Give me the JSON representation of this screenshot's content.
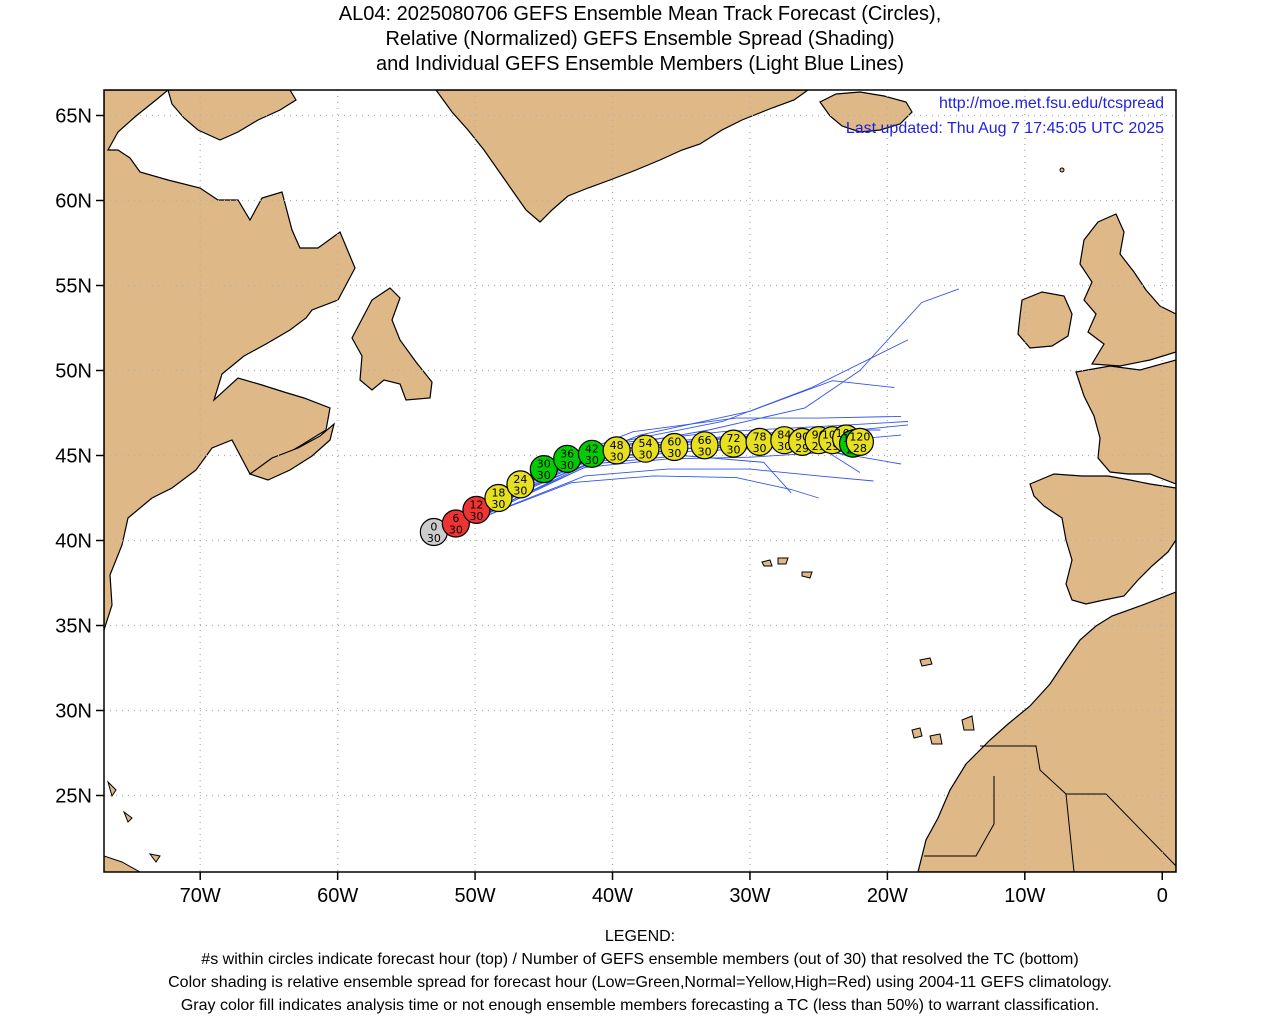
{
  "title": {
    "line1": "AL04: 2025080706 GEFS Ensemble Mean Track Forecast (Circles),",
    "line2": "Relative (Normalized) GEFS Ensemble Spread (Shading)",
    "line3": "and Individual GEFS Ensemble Members (Light Blue Lines)"
  },
  "header_info": {
    "url": "http://moe.met.fsu.edu/tcspread",
    "updated": "Last updated: Thu Aug 7 17:45:05 UTC 2025"
  },
  "map": {
    "lon_range": [
      -77,
      1
    ],
    "lat_range": [
      20.5,
      66.5
    ],
    "gridlines": "dotted",
    "lat_labels": [
      "65N",
      "60N",
      "55N",
      "50N",
      "45N",
      "40N",
      "35N",
      "30N",
      "25N"
    ],
    "lat_values": [
      65,
      60,
      55,
      50,
      45,
      40,
      35,
      30,
      25
    ],
    "lon_labels": [
      "70W",
      "60W",
      "50W",
      "40W",
      "30W",
      "20W",
      "10W",
      "0"
    ],
    "lon_values": [
      -70,
      -60,
      -50,
      -40,
      -30,
      -20,
      -10,
      0
    ]
  },
  "colors": {
    "land": "#deb887",
    "ocean": "#ffffff",
    "member_lines": "#3355ee",
    "spread_low": "#00cc00",
    "spread_normal": "#e6e020",
    "spread_high": "#ee3333",
    "insufficient": "#cccccc",
    "url_text": "#2222dd"
  },
  "track": [
    {
      "hour": "0",
      "members": "30",
      "lon": -53.0,
      "lat": 40.5,
      "spread": "gray"
    },
    {
      "hour": "6",
      "members": "30",
      "lon": -51.4,
      "lat": 41.0,
      "spread": "high"
    },
    {
      "hour": "12",
      "members": "30",
      "lon": -49.9,
      "lat": 41.8,
      "spread": "high"
    },
    {
      "hour": "18",
      "members": "30",
      "lon": -48.3,
      "lat": 42.5,
      "spread": "normal"
    },
    {
      "hour": "24",
      "members": "30",
      "lon": -46.7,
      "lat": 43.3,
      "spread": "normal"
    },
    {
      "hour": "30",
      "members": "30",
      "lon": -45.0,
      "lat": 44.2,
      "spread": "low"
    },
    {
      "hour": "36",
      "members": "30",
      "lon": -43.3,
      "lat": 44.8,
      "spread": "low"
    },
    {
      "hour": "42",
      "members": "30",
      "lon": -41.5,
      "lat": 45.1,
      "spread": "low"
    },
    {
      "hour": "48",
      "members": "30",
      "lon": -39.7,
      "lat": 45.3,
      "spread": "normal"
    },
    {
      "hour": "54",
      "members": "30",
      "lon": -37.6,
      "lat": 45.4,
      "spread": "normal"
    },
    {
      "hour": "60",
      "members": "30",
      "lon": -35.5,
      "lat": 45.5,
      "spread": "normal"
    },
    {
      "hour": "66",
      "members": "30",
      "lon": -33.3,
      "lat": 45.6,
      "spread": "normal"
    },
    {
      "hour": "72",
      "members": "30",
      "lon": -31.2,
      "lat": 45.7,
      "spread": "normal"
    },
    {
      "hour": "78",
      "members": "30",
      "lon": -29.3,
      "lat": 45.8,
      "spread": "normal"
    },
    {
      "hour": "84",
      "members": "30",
      "lon": -27.5,
      "lat": 45.9,
      "spread": "normal"
    },
    {
      "hour": "90",
      "members": "29",
      "lon": -26.2,
      "lat": 45.8,
      "spread": "normal"
    },
    {
      "hour": "96",
      "members": "29",
      "lon": -25.0,
      "lat": 45.9,
      "spread": "normal"
    },
    {
      "hour": "102",
      "members": "29",
      "lon": -24.0,
      "lat": 45.9,
      "spread": "normal"
    },
    {
      "hour": "108",
      "members": "29",
      "lon": -23.0,
      "lat": 46.0,
      "spread": "normal"
    },
    {
      "hour": "114",
      "members": "28",
      "lon": -22.5,
      "lat": 45.7,
      "spread": "low"
    },
    {
      "hour": "120",
      "members": "28",
      "lon": -22.0,
      "lat": 45.8,
      "spread": "normal"
    }
  ],
  "members": [
    [
      [
        -50.5,
        41.0
      ],
      [
        -46.0,
        43.5
      ],
      [
        -40.0,
        45.5
      ],
      [
        -33.0,
        46.5
      ],
      [
        -26.0,
        47.8
      ],
      [
        -22.0,
        50.0
      ],
      [
        -17.5,
        54.0
      ],
      [
        -14.8,
        54.8
      ]
    ],
    [
      [
        -50.5,
        41.0
      ],
      [
        -45.5,
        43.8
      ],
      [
        -39.5,
        45.8
      ],
      [
        -32.0,
        47.0
      ],
      [
        -25.5,
        49.0
      ],
      [
        -18.5,
        51.8
      ]
    ],
    [
      [
        -50.5,
        41.0
      ],
      [
        -45.0,
        44.0
      ],
      [
        -38.0,
        46.2
      ],
      [
        -30.0,
        47.6
      ],
      [
        -24.0,
        49.4
      ],
      [
        -19.5,
        49.0
      ]
    ],
    [
      [
        -50.5,
        41.0
      ],
      [
        -45.5,
        44.2
      ],
      [
        -38.5,
        46.4
      ],
      [
        -31.0,
        47.2
      ],
      [
        -25.0,
        47.2
      ],
      [
        -19.0,
        47.3
      ]
    ],
    [
      [
        -50.5,
        41.0
      ],
      [
        -46.0,
        43.6
      ],
      [
        -40.0,
        45.7
      ],
      [
        -32.0,
        46.4
      ],
      [
        -25.0,
        46.7
      ],
      [
        -18.5,
        47.0
      ]
    ],
    [
      [
        -50.5,
        41.0
      ],
      [
        -46.0,
        43.2
      ],
      [
        -40.5,
        45.1
      ],
      [
        -34.0,
        45.7
      ],
      [
        -27.0,
        46.1
      ],
      [
        -18.5,
        46.8
      ]
    ],
    [
      [
        -50.5,
        41.0
      ],
      [
        -46.5,
        42.9
      ],
      [
        -41.0,
        44.8
      ],
      [
        -34.5,
        45.4
      ],
      [
        -27.5,
        45.6
      ],
      [
        -19.0,
        46.2
      ]
    ],
    [
      [
        -50.5,
        41.0
      ],
      [
        -47.0,
        42.5
      ],
      [
        -42.0,
        44.3
      ],
      [
        -36.0,
        44.8
      ],
      [
        -30.0,
        44.9
      ],
      [
        -24.0,
        45.2
      ],
      [
        -19.0,
        44.5
      ]
    ],
    [
      [
        -50.5,
        41.0
      ],
      [
        -47.0,
        42.2
      ],
      [
        -42.0,
        43.8
      ],
      [
        -36.0,
        44.2
      ],
      [
        -30.0,
        44.2
      ],
      [
        -25.0,
        43.8
      ],
      [
        -21.0,
        43.5
      ]
    ],
    [
      [
        -50.5,
        41.0
      ],
      [
        -47.5,
        42.0
      ],
      [
        -43.0,
        43.4
      ],
      [
        -37.0,
        43.8
      ],
      [
        -31.0,
        43.7
      ],
      [
        -27.0,
        43.0
      ],
      [
        -25.0,
        42.5
      ]
    ],
    [
      [
        -50.5,
        41.0
      ],
      [
        -47.0,
        42.4
      ],
      [
        -41.5,
        44.5
      ],
      [
        -35.0,
        45.0
      ],
      [
        -29.0,
        44.6
      ],
      [
        -27.0,
        42.8
      ]
    ],
    [
      [
        -50.5,
        41.0
      ],
      [
        -46.5,
        42.7
      ],
      [
        -41.5,
        44.6
      ],
      [
        -35.5,
        45.2
      ],
      [
        -30.0,
        45.4
      ],
      [
        -26.0,
        45.6
      ],
      [
        -23.0,
        45.0
      ]
    ],
    [
      [
        -50.5,
        41.0
      ],
      [
        -46.5,
        43.0
      ],
      [
        -40.5,
        44.9
      ],
      [
        -33.5,
        45.5
      ],
      [
        -27.0,
        45.9
      ],
      [
        -21.5,
        46.1
      ]
    ],
    [
      [
        -50.5,
        41.0
      ],
      [
        -46.0,
        43.3
      ],
      [
        -40.0,
        45.3
      ],
      [
        -33.0,
        45.9
      ],
      [
        -27.0,
        46.3
      ],
      [
        -21.0,
        45.9
      ]
    ],
    [
      [
        -50.5,
        41.0
      ],
      [
        -45.5,
        43.6
      ],
      [
        -39.0,
        45.6
      ],
      [
        -32.0,
        46.1
      ],
      [
        -26.0,
        46.5
      ],
      [
        -20.5,
        46.5
      ]
    ],
    [
      [
        -50.5,
        41.0
      ],
      [
        -46.0,
        43.5
      ],
      [
        -39.5,
        45.4
      ],
      [
        -32.5,
        46.0
      ],
      [
        -26.5,
        46.3
      ],
      [
        -22.0,
        44.0
      ]
    ]
  ],
  "legend": {
    "title": "LEGEND:",
    "line1": "#s within circles indicate forecast hour (top) / Number of GEFS ensemble members (out of 30) that resolved the TC (bottom)",
    "line2": "Color shading is relative ensemble spread for forecast hour (Low=Green,Normal=Yellow,High=Red) using 2004-11 GEFS climatology.",
    "line3": "Gray color fill indicates analysis time or not enough ensemble members forecasting a TC (less than 50%) to warrant classification."
  }
}
